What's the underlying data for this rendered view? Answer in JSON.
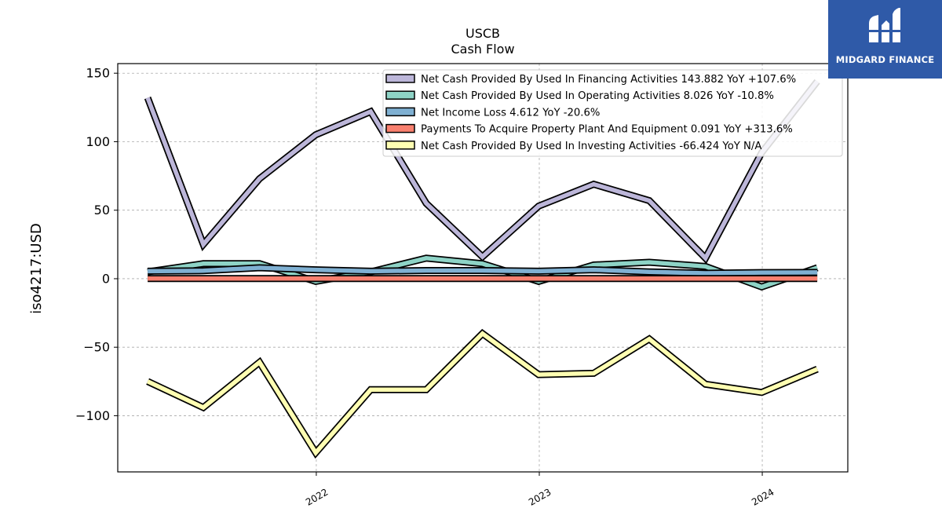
{
  "chart_data": {
    "type": "line",
    "title": "USCB",
    "subtitle": "Cash Flow",
    "ylabel": "iso4217:USD",
    "xlabel": "",
    "ylim": [
      -141,
      157
    ],
    "xlim": [
      "2021-02-10",
      "2024-05-20"
    ],
    "yticks": [
      150,
      100,
      50,
      0,
      -50,
      -100
    ],
    "ytick_labels": [
      "150",
      "100",
      "50",
      "0",
      "−50",
      "−100"
    ],
    "xticks": [
      "2022-01-01",
      "2023-01-01",
      "2024-01-01"
    ],
    "xtick_labels": [
      "2022",
      "2023",
      "2024"
    ],
    "grid": true,
    "legend_position": "top-right",
    "x": [
      "2021-03-31",
      "2021-06-30",
      "2021-09-30",
      "2021-12-31",
      "2022-03-31",
      "2022-06-30",
      "2022-09-30",
      "2022-12-31",
      "2023-03-31",
      "2023-06-30",
      "2023-09-30",
      "2023-12-31",
      "2024-03-31"
    ],
    "series": [
      {
        "name": "Net Cash Provided By Used In Financing Activities",
        "legend": "Net Cash Provided By Used In Financing Activities  143.882 YoY +107.6%",
        "color": "#bcb6d9",
        "values": [
          132,
          25,
          73,
          105,
          122,
          55,
          16,
          53,
          69,
          57,
          15,
          92,
          144
        ]
      },
      {
        "name": "Net Cash Provided By Used In Operating Activities",
        "legend": "Net Cash Provided By Used In Operating Activities  8.026 YoY -10.8%",
        "color": "#8ed3c6",
        "values": [
          5,
          11,
          11,
          -2,
          5,
          15,
          11,
          -2,
          10,
          12,
          9,
          -6,
          8
        ]
      },
      {
        "name": "Net Income Loss",
        "legend": "Net Income Loss  4.612 YoY -20.6%",
        "color": "#7fb0d2",
        "values": [
          5.5,
          5.8,
          8,
          6.5,
          5.5,
          6,
          6,
          5.5,
          6.5,
          5,
          4,
          4.5,
          4.6
        ]
      },
      {
        "name": "Payments To Acquire Property Plant And Equipment",
        "legend": "Payments To Acquire Property Plant And Equipment  0.091 YoY +313.6%",
        "color": "#f9806f",
        "values": [
          0.1,
          0.1,
          0.1,
          0.1,
          0.1,
          0.1,
          0.1,
          0.1,
          0.1,
          0.1,
          0.1,
          0.1,
          0.091
        ]
      },
      {
        "name": "Net Cash Provided By Used In Investing Activities",
        "legend": "Net Cash Provided By Used In Investing Activities  -66.424 YoY N/A",
        "color": "#ffffb2",
        "values": [
          -75,
          -94,
          -61,
          -127,
          -81,
          -81,
          -40,
          -70,
          -69,
          -44,
          -77,
          -83,
          -66
        ]
      }
    ]
  },
  "logo": {
    "text": "MIDGARD FINANCE"
  }
}
